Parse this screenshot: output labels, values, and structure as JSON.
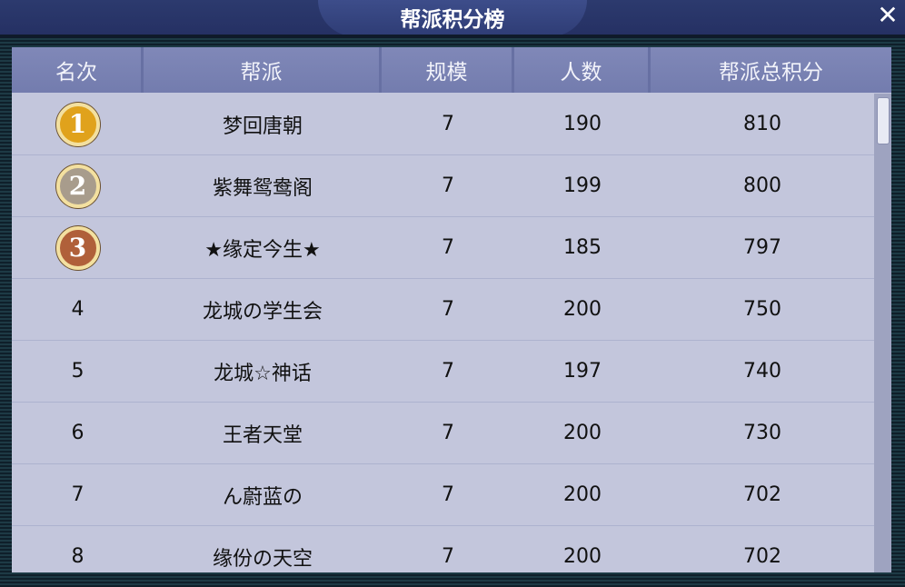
{
  "title": "帮派积分榜",
  "close_icon": "close-icon",
  "columns": [
    "名次",
    "帮派",
    "规模",
    "人数",
    "帮派总积分"
  ],
  "medal_colors": {
    "1": "#e0a21c",
    "2": "#a89c8c",
    "3": "#b0603a"
  },
  "rows": [
    {
      "rank": "1",
      "name": "梦回唐朝",
      "size": "7",
      "members": "190",
      "score": "810"
    },
    {
      "rank": "2",
      "name": "紫舞鸳鸯阁",
      "size": "7",
      "members": "199",
      "score": "800"
    },
    {
      "rank": "3",
      "name": "★缘定今生★",
      "size": "7",
      "members": "185",
      "score": "797"
    },
    {
      "rank": "4",
      "name": "龙城の学生会",
      "size": "7",
      "members": "200",
      "score": "750"
    },
    {
      "rank": "5",
      "name": "龙城☆神话",
      "size": "7",
      "members": "197",
      "score": "740"
    },
    {
      "rank": "6",
      "name": "王者天堂",
      "size": "7",
      "members": "200",
      "score": "730"
    },
    {
      "rank": "7",
      "name": "ん蔚蓝の",
      "size": "7",
      "members": "200",
      "score": "702"
    },
    {
      "rank": "8",
      "name": "缘份の天空",
      "size": "7",
      "members": "200",
      "score": "702"
    }
  ]
}
